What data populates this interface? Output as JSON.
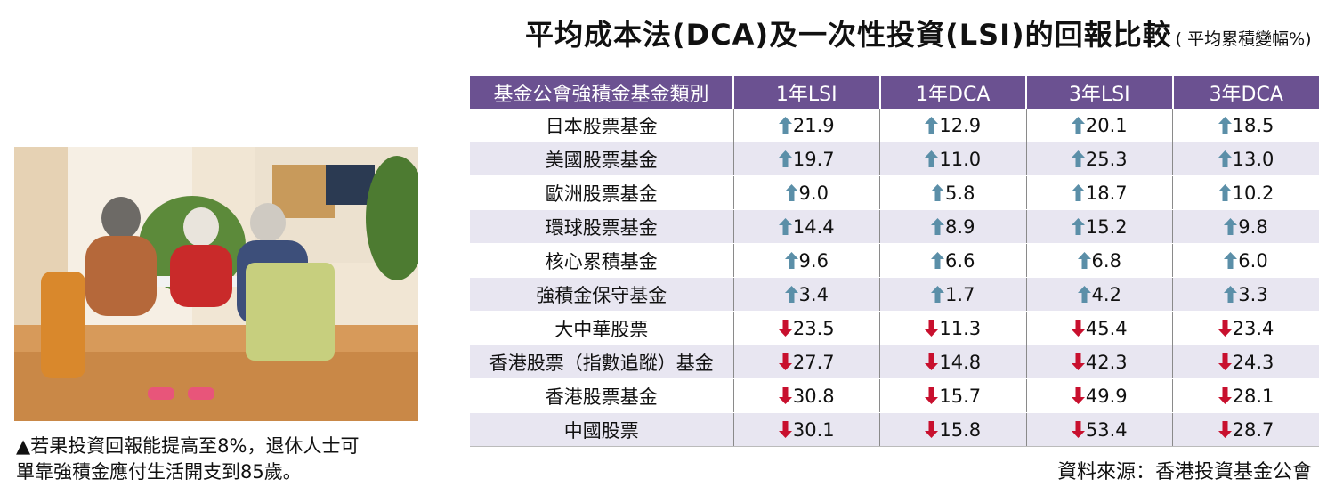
{
  "title": {
    "main": "平均成本法(DCA)及一次性投資(LSI)的回報比較",
    "sub": "( 平均累積變幅%)"
  },
  "table": {
    "headers": [
      "基金公會強積金基金類別",
      "1年LSI",
      "1年DCA",
      "3年LSI",
      "3年DCA"
    ],
    "colors": {
      "header_bg": "#6b5191",
      "up_arrow": "#5b8fa8",
      "down_arrow": "#c8102e",
      "stripe": "#e8e6f1"
    },
    "rows": [
      {
        "name": "日本股票基金",
        "cells": [
          {
            "dir": "up",
            "value": "21.9"
          },
          {
            "dir": "up",
            "value": "12.9"
          },
          {
            "dir": "up",
            "value": "20.1"
          },
          {
            "dir": "up",
            "value": "18.5"
          }
        ]
      },
      {
        "name": "美國股票基金",
        "cells": [
          {
            "dir": "up",
            "value": "19.7"
          },
          {
            "dir": "up",
            "value": "11.0"
          },
          {
            "dir": "up",
            "value": "25.3"
          },
          {
            "dir": "up",
            "value": "13.0"
          }
        ]
      },
      {
        "name": "歐洲股票基金",
        "cells": [
          {
            "dir": "up",
            "value": "9.0"
          },
          {
            "dir": "up",
            "value": "5.8"
          },
          {
            "dir": "up",
            "value": "18.7"
          },
          {
            "dir": "up",
            "value": "10.2"
          }
        ]
      },
      {
        "name": "環球股票基金",
        "cells": [
          {
            "dir": "up",
            "value": "14.4"
          },
          {
            "dir": "up",
            "value": "8.9"
          },
          {
            "dir": "up",
            "value": "15.2"
          },
          {
            "dir": "up",
            "value": "9.8"
          }
        ]
      },
      {
        "name": "核心累積基金",
        "cells": [
          {
            "dir": "up",
            "value": "9.6"
          },
          {
            "dir": "up",
            "value": "6.6"
          },
          {
            "dir": "up",
            "value": "6.8"
          },
          {
            "dir": "up",
            "value": "6.0"
          }
        ]
      },
      {
        "name": "強積金保守基金",
        "cells": [
          {
            "dir": "up",
            "value": "3.4"
          },
          {
            "dir": "up",
            "value": "1.7"
          },
          {
            "dir": "up",
            "value": "4.2"
          },
          {
            "dir": "up",
            "value": "3.3"
          }
        ]
      },
      {
        "name": "大中華股票",
        "cells": [
          {
            "dir": "down",
            "value": "23.5"
          },
          {
            "dir": "down",
            "value": "11.3"
          },
          {
            "dir": "down",
            "value": "45.4"
          },
          {
            "dir": "down",
            "value": "23.4"
          }
        ]
      },
      {
        "name": "香港股票（指數追蹤）基金",
        "cells": [
          {
            "dir": "down",
            "value": "27.7"
          },
          {
            "dir": "down",
            "value": "14.8"
          },
          {
            "dir": "down",
            "value": "42.3"
          },
          {
            "dir": "down",
            "value": "24.3"
          }
        ]
      },
      {
        "name": "香港股票基金",
        "cells": [
          {
            "dir": "down",
            "value": "30.8"
          },
          {
            "dir": "down",
            "value": "15.7"
          },
          {
            "dir": "down",
            "value": "49.9"
          },
          {
            "dir": "down",
            "value": "28.1"
          }
        ]
      },
      {
        "name": "中國股票",
        "cells": [
          {
            "dir": "down",
            "value": "30.1"
          },
          {
            "dir": "down",
            "value": "15.8"
          },
          {
            "dir": "down",
            "value": "53.4"
          },
          {
            "dir": "down",
            "value": "28.7"
          }
        ]
      }
    ]
  },
  "photo": {
    "icon": "photo-elderly-residents"
  },
  "caption": [
    "▲若果投資回報能提高至8%，退休人士可",
    "單靠強積金應付生活開支到85歲。"
  ],
  "source": "資料來源：香港投資基金公會"
}
